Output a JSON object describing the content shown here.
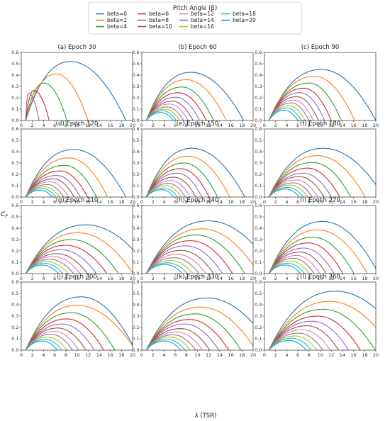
{
  "legend": {
    "title": "Pitch Angle (β)",
    "placement": "top-center",
    "entries": [
      {
        "label": "beta=0",
        "color": "#1f77b4"
      },
      {
        "label": "beta=2",
        "color": "#ff7f0e"
      },
      {
        "label": "beta=4",
        "color": "#2ca02c"
      },
      {
        "label": "beta=6",
        "color": "#d62728"
      },
      {
        "label": "beta=8",
        "color": "#9467bd"
      },
      {
        "label": "beta=10",
        "color": "#8c564b"
      },
      {
        "label": "beta=12",
        "color": "#e377c2"
      },
      {
        "label": "beta=14",
        "color": "#7f7f7f"
      },
      {
        "label": "beta=16",
        "color": "#bcbd22"
      },
      {
        "label": "beta=18",
        "color": "#17becf"
      },
      {
        "label": "beta=20",
        "color": "#17a0d8"
      }
    ]
  },
  "xlabel": "λ (TSR)",
  "ylabel": "C_P",
  "chart_data": {
    "type": "line",
    "xlim": [
      0,
      20
    ],
    "ylim": [
      0,
      0.6
    ],
    "xticks": [
      0,
      2,
      4,
      6,
      8,
      10,
      12,
      14,
      16,
      18,
      20
    ],
    "yticks": [
      0.0,
      0.1,
      0.2,
      0.3,
      0.4,
      0.5,
      0.6
    ],
    "grid": false,
    "series_names": [
      "beta=0",
      "beta=2",
      "beta=4",
      "beta=6",
      "beta=8",
      "beta=10",
      "beta=12",
      "beta=14",
      "beta=16",
      "beta=18",
      "beta=20"
    ],
    "panels": [
      {
        "title": "(a) Epoch 30",
        "peaks": [
          [
            8.8,
            0.52
          ],
          [
            6.3,
            0.41
          ],
          [
            4.1,
            0.33
          ],
          [
            2.3,
            0.265
          ],
          [
            1.3,
            0.24
          ]
        ],
        "ranges": [
          [
            0.8,
            18.8
          ],
          [
            0.8,
            12.0
          ],
          [
            0.8,
            8.2
          ],
          [
            0.8,
            5.0
          ],
          [
            0.8,
            3.2
          ]
        ]
      },
      {
        "title": "(b) Epoch 60",
        "peaks": [
          [
            8.8,
            0.425
          ],
          [
            8.0,
            0.36
          ],
          [
            7.2,
            0.295
          ],
          [
            6.6,
            0.245
          ],
          [
            6.1,
            0.205
          ],
          [
            5.5,
            0.17
          ],
          [
            5.0,
            0.145
          ],
          [
            4.6,
            0.12
          ],
          [
            4.2,
            0.1
          ],
          [
            3.8,
            0.085
          ],
          [
            3.5,
            0.07
          ]
        ],
        "ranges": [
          [
            0.8,
            18.3
          ],
          [
            0.8,
            15.2
          ],
          [
            0.8,
            12.9
          ],
          [
            0.8,
            11.6
          ],
          [
            0.8,
            10.4
          ],
          [
            0.8,
            9.2
          ],
          [
            0.8,
            8.3
          ],
          [
            0.8,
            7.5
          ],
          [
            0.8,
            6.8
          ],
          [
            0.8,
            6.2
          ],
          [
            0.8,
            5.7
          ]
        ]
      },
      {
        "title": "(c) Epoch 90",
        "peaks": [
          [
            10.2,
            0.45
          ],
          [
            9.0,
            0.39
          ],
          [
            8.0,
            0.33
          ],
          [
            7.1,
            0.285
          ],
          [
            6.4,
            0.245
          ],
          [
            5.8,
            0.21
          ],
          [
            5.3,
            0.18
          ],
          [
            4.8,
            0.155
          ],
          [
            4.4,
            0.13
          ],
          [
            4.0,
            0.11
          ],
          [
            3.6,
            0.09
          ]
        ],
        "ranges": [
          [
            0.8,
            20
          ],
          [
            0.8,
            16.2
          ],
          [
            0.8,
            13.8
          ],
          [
            0.8,
            12.0
          ],
          [
            0.8,
            10.8
          ],
          [
            0.8,
            9.7
          ],
          [
            0.8,
            8.8
          ],
          [
            0.8,
            8.0
          ],
          [
            0.8,
            7.3
          ],
          [
            0.8,
            6.6
          ],
          [
            0.8,
            6.0
          ]
        ]
      },
      {
        "title": "(d) Epoch 120",
        "peaks": [
          [
            9.4,
            0.42
          ],
          [
            8.6,
            0.345
          ],
          [
            7.8,
            0.28
          ],
          [
            7.0,
            0.23
          ],
          [
            6.4,
            0.19
          ],
          [
            5.8,
            0.16
          ],
          [
            5.2,
            0.135
          ],
          [
            4.7,
            0.11
          ],
          [
            4.2,
            0.09
          ],
          [
            3.8,
            0.075
          ],
          [
            3.4,
            0.06
          ]
        ],
        "ranges": [
          [
            0.8,
            18.8
          ],
          [
            0.8,
            15.5
          ],
          [
            0.8,
            13.5
          ],
          [
            0.8,
            11.9
          ],
          [
            0.8,
            10.6
          ],
          [
            0.8,
            9.5
          ],
          [
            0.8,
            8.5
          ],
          [
            0.8,
            7.6
          ],
          [
            0.8,
            6.9
          ],
          [
            0.8,
            6.2
          ],
          [
            0.8,
            5.6
          ]
        ]
      },
      {
        "title": "(e) Epoch 150",
        "peaks": [
          [
            9.0,
            0.43
          ],
          [
            8.3,
            0.36
          ],
          [
            7.6,
            0.3
          ],
          [
            7.0,
            0.25
          ],
          [
            6.4,
            0.21
          ],
          [
            5.8,
            0.175
          ],
          [
            5.3,
            0.145
          ],
          [
            4.8,
            0.12
          ],
          [
            4.4,
            0.1
          ],
          [
            4.0,
            0.08
          ],
          [
            3.6,
            0.065
          ]
        ],
        "ranges": [
          [
            0.8,
            18.5
          ],
          [
            0.8,
            15.8
          ],
          [
            0.8,
            13.6
          ],
          [
            0.8,
            12.1
          ],
          [
            0.8,
            10.8
          ],
          [
            0.8,
            9.7
          ],
          [
            0.8,
            8.7
          ],
          [
            0.8,
            7.8
          ],
          [
            0.8,
            7.1
          ],
          [
            0.8,
            6.4
          ],
          [
            0.8,
            5.8
          ]
        ]
      },
      {
        "title": "(f) Epoch 180",
        "peaks": [
          [
            10.6,
            0.43
          ],
          [
            9.6,
            0.365
          ],
          [
            8.7,
            0.305
          ],
          [
            7.8,
            0.255
          ],
          [
            7.0,
            0.21
          ],
          [
            6.3,
            0.18
          ],
          [
            5.7,
            0.15
          ],
          [
            5.2,
            0.125
          ],
          [
            4.7,
            0.105
          ],
          [
            4.2,
            0.085
          ],
          [
            3.8,
            0.07
          ]
        ],
        "ranges": [
          [
            0.8,
            21.5
          ],
          [
            0.8,
            18.1
          ],
          [
            0.8,
            15.5
          ],
          [
            0.8,
            13.5
          ],
          [
            0.8,
            12.0
          ],
          [
            0.8,
            10.7
          ],
          [
            0.8,
            9.6
          ],
          [
            0.8,
            8.6
          ],
          [
            0.8,
            7.8
          ],
          [
            0.8,
            7.0
          ],
          [
            0.8,
            6.3
          ]
        ]
      },
      {
        "title": "(g) Epoch 210",
        "peaks": [
          [
            11.6,
            0.43
          ],
          [
            10.2,
            0.36
          ],
          [
            9.0,
            0.3
          ],
          [
            8.0,
            0.25
          ],
          [
            7.2,
            0.21
          ],
          [
            6.4,
            0.175
          ],
          [
            5.8,
            0.15
          ],
          [
            5.2,
            0.125
          ],
          [
            4.7,
            0.105
          ],
          [
            4.2,
            0.09
          ],
          [
            3.8,
            0.075
          ]
        ],
        "ranges": [
          [
            0.8,
            23.5
          ],
          [
            0.8,
            20.1
          ],
          [
            0.8,
            17.5
          ],
          [
            0.8,
            15.4
          ],
          [
            0.8,
            13.5
          ],
          [
            0.8,
            11.9
          ],
          [
            0.8,
            10.6
          ],
          [
            0.8,
            9.4
          ],
          [
            0.8,
            8.4
          ],
          [
            0.8,
            7.5
          ],
          [
            0.8,
            6.7
          ]
        ]
      },
      {
        "title": "(h) Epoch 240",
        "peaks": [
          [
            12.0,
            0.465
          ],
          [
            10.8,
            0.395
          ],
          [
            9.8,
            0.34
          ],
          [
            8.8,
            0.29
          ],
          [
            7.9,
            0.245
          ],
          [
            7.1,
            0.205
          ],
          [
            6.4,
            0.17
          ],
          [
            5.8,
            0.14
          ],
          [
            5.2,
            0.115
          ],
          [
            4.7,
            0.095
          ],
          [
            4.2,
            0.08
          ]
        ],
        "ranges": [
          [
            0.8,
            24.0
          ],
          [
            0.8,
            21.0
          ],
          [
            0.8,
            18.5
          ],
          [
            0.8,
            16.3
          ],
          [
            0.8,
            14.5
          ],
          [
            0.8,
            12.9
          ],
          [
            0.8,
            11.5
          ],
          [
            0.8,
            10.3
          ],
          [
            0.8,
            9.2
          ],
          [
            0.8,
            8.2
          ],
          [
            0.8,
            7.3
          ]
        ]
      },
      {
        "title": "(i) Epoch 270",
        "peaks": [
          [
            10.5,
            0.46
          ],
          [
            9.6,
            0.385
          ],
          [
            8.7,
            0.32
          ],
          [
            7.9,
            0.27
          ],
          [
            7.1,
            0.225
          ],
          [
            6.4,
            0.19
          ],
          [
            5.8,
            0.16
          ],
          [
            5.2,
            0.135
          ],
          [
            4.7,
            0.11
          ],
          [
            4.2,
            0.09
          ],
          [
            3.8,
            0.075
          ]
        ],
        "ranges": [
          [
            0.8,
            20.5
          ],
          [
            0.8,
            18.5
          ],
          [
            0.8,
            16.1
          ],
          [
            0.8,
            14.1
          ],
          [
            0.8,
            12.5
          ],
          [
            0.8,
            11.1
          ],
          [
            0.8,
            9.9
          ],
          [
            0.8,
            8.9
          ],
          [
            0.8,
            8.0
          ],
          [
            0.8,
            7.2
          ],
          [
            0.8,
            6.5
          ]
        ]
      },
      {
        "title": "(j) Epoch 300",
        "peaks": [
          [
            10.8,
            0.47
          ],
          [
            10.0,
            0.395
          ],
          [
            9.0,
            0.33
          ],
          [
            8.2,
            0.275
          ],
          [
            7.4,
            0.23
          ],
          [
            6.6,
            0.195
          ],
          [
            6.0,
            0.165
          ],
          [
            5.4,
            0.14
          ],
          [
            4.8,
            0.115
          ],
          [
            4.3,
            0.095
          ],
          [
            3.8,
            0.08
          ]
        ],
        "ranges": [
          [
            0.8,
            20.5
          ],
          [
            0.8,
            20.5
          ],
          [
            0.8,
            16.8
          ],
          [
            0.8,
            14.8
          ],
          [
            0.8,
            13.1
          ],
          [
            0.8,
            11.6
          ],
          [
            0.8,
            10.3
          ],
          [
            0.8,
            9.2
          ],
          [
            0.8,
            8.2
          ],
          [
            0.8,
            7.3
          ],
          [
            0.8,
            6.5
          ]
        ]
      },
      {
        "title": "(k) Epoch 330",
        "peaks": [
          [
            11.8,
            0.46
          ],
          [
            10.6,
            0.38
          ],
          [
            9.6,
            0.32
          ],
          [
            8.6,
            0.27
          ],
          [
            7.8,
            0.23
          ],
          [
            7.0,
            0.19
          ],
          [
            6.3,
            0.16
          ],
          [
            5.7,
            0.135
          ],
          [
            5.1,
            0.115
          ],
          [
            4.6,
            0.095
          ],
          [
            4.1,
            0.08
          ]
        ],
        "ranges": [
          [
            0.8,
            23.5
          ],
          [
            0.8,
            20.5
          ],
          [
            0.8,
            17.8
          ],
          [
            0.8,
            15.6
          ],
          [
            0.8,
            13.8
          ],
          [
            0.8,
            12.2
          ],
          [
            0.8,
            10.9
          ],
          [
            0.8,
            9.7
          ],
          [
            0.8,
            8.7
          ],
          [
            0.8,
            7.8
          ],
          [
            0.8,
            7.0
          ]
        ]
      },
      {
        "title": "(l) Epoch 360",
        "peaks": [
          [
            12.8,
            0.52
          ],
          [
            11.8,
            0.43
          ],
          [
            10.6,
            0.36
          ],
          [
            9.6,
            0.3
          ],
          [
            8.6,
            0.255
          ],
          [
            7.7,
            0.215
          ],
          [
            6.9,
            0.18
          ],
          [
            6.2,
            0.15
          ],
          [
            5.6,
            0.125
          ],
          [
            5.0,
            0.105
          ],
          [
            4.5,
            0.085
          ]
        ],
        "ranges": [
          [
            0.8,
            26.0
          ],
          [
            0.8,
            23.0
          ],
          [
            0.8,
            19.9
          ],
          [
            0.8,
            17.2
          ],
          [
            0.8,
            15.1
          ],
          [
            0.8,
            13.3
          ],
          [
            0.8,
            11.8
          ],
          [
            0.8,
            10.5
          ],
          [
            0.8,
            9.4
          ],
          [
            0.8,
            8.4
          ],
          [
            0.8,
            7.5
          ]
        ]
      }
    ]
  }
}
